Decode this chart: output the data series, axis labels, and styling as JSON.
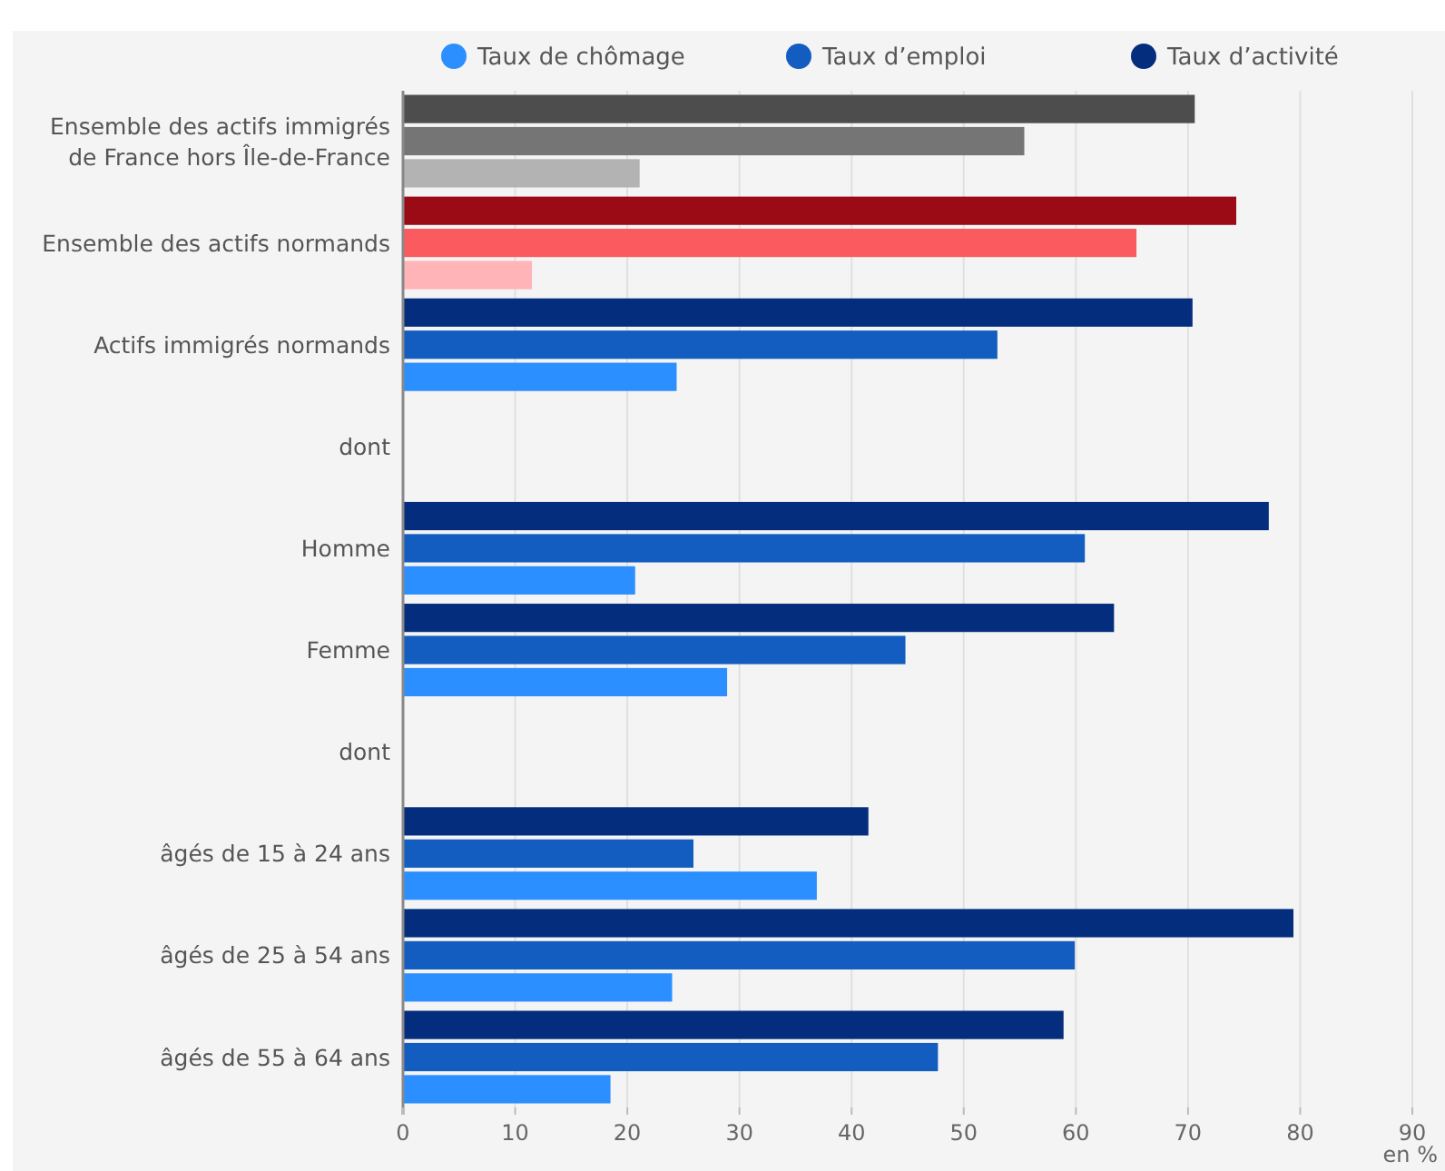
{
  "chart_data": {
    "type": "bar",
    "orientation": "horizontal",
    "xlabel": "en %",
    "categories": [
      "Ensemble des actifs immigrés de France hors Île-de-France",
      "Ensemble des actifs normands",
      "Actifs immigrés normands",
      "dont",
      "Homme",
      "Femme",
      "dont",
      "âgés de 15 à 24 ans",
      "âgés de 25 à 54 ans",
      "âgés de 55 à 64 ans"
    ],
    "series": [
      {
        "name": "Taux d’activité",
        "color": "#042d7e",
        "colors": [
          "#4d4d4d",
          "#9a0b16",
          "#042d7e",
          "#042d7e",
          "#042d7e",
          "#042d7e",
          "#042d7e",
          "#042d7e",
          "#042d7e",
          "#042d7e"
        ],
        "values": [
          70.6,
          74.3,
          70.4,
          null,
          77.2,
          63.4,
          null,
          41.5,
          79.4,
          58.9
        ]
      },
      {
        "name": "Taux d’emploi",
        "color": "#125dbf",
        "colors": [
          "#757575",
          "#fb5b5e",
          "#125dbf",
          "#125dbf",
          "#125dbf",
          "#125dbf",
          "#125dbf",
          "#125dbf",
          "#125dbf",
          "#125dbf"
        ],
        "values": [
          55.4,
          65.4,
          53.0,
          null,
          60.8,
          44.8,
          null,
          25.9,
          59.9,
          47.7
        ]
      },
      {
        "name": "Taux de chômage",
        "color": "#2b8fff",
        "colors": [
          "#b3b3b3",
          "#ffb4b8",
          "#2b8fff",
          "#2b8fff",
          "#2b8fff",
          "#2b8fff",
          "#2b8fff",
          "#2b8fff",
          "#2b8fff",
          "#2b8fff"
        ],
        "values": [
          21.1,
          11.5,
          24.4,
          null,
          20.7,
          28.9,
          null,
          36.9,
          24.0,
          18.5
        ]
      }
    ],
    "xlim": [
      0,
      90
    ],
    "xticks": [
      0,
      10,
      20,
      30,
      40,
      50,
      60,
      70,
      80,
      90
    ],
    "grid": "x",
    "legend": "top"
  }
}
